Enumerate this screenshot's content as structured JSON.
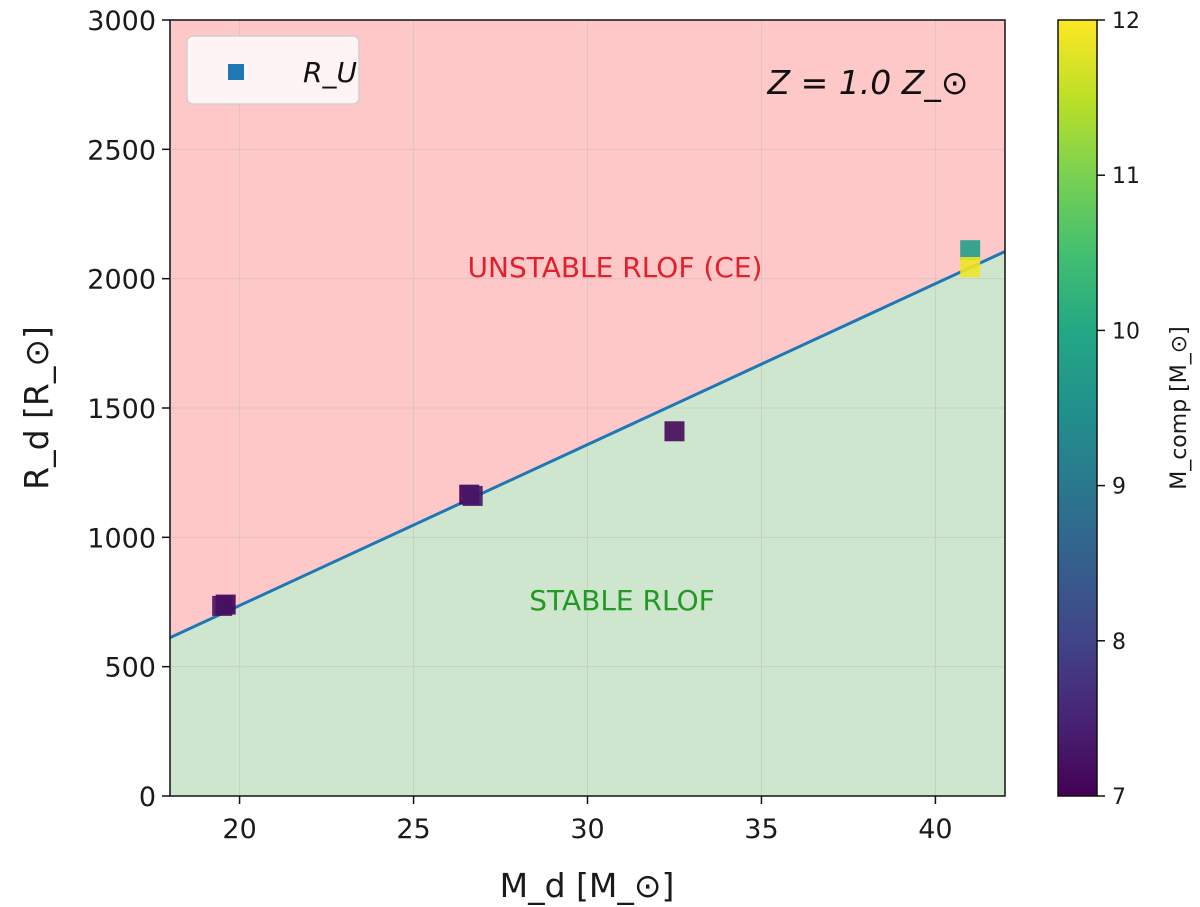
{
  "chart_data": {
    "type": "scatter",
    "xlabel": "M_d [M_⊙]",
    "ylabel": "R_d [R_⊙]",
    "xlim": [
      18,
      42
    ],
    "ylim": [
      0,
      3000
    ],
    "x_ticks": [
      20,
      25,
      30,
      35,
      40
    ],
    "y_ticks": [
      0,
      500,
      1000,
      1500,
      2000,
      2500,
      3000
    ],
    "grid": true,
    "legend": {
      "placement": "top-left",
      "entries": [
        {
          "label": "R_U",
          "marker": "square",
          "color": "#1f77b4"
        }
      ]
    },
    "annotation": "Z = 1.0 Z_⊙",
    "regions": [
      {
        "label": "UNSTABLE RLOF (CE)",
        "position": "above line",
        "color": "#ffc8c8",
        "text_color": "#e0202a"
      },
      {
        "label": "STABLE RLOF",
        "position": "below line",
        "color": "#cde6cd",
        "text_color": "#229922"
      }
    ],
    "series": [
      {
        "name": "R_U",
        "kind": "line",
        "color": "#1f77b4",
        "x": [
          18,
          42
        ],
        "y": [
          612,
          2105
        ]
      },
      {
        "kind": "scatter",
        "marker": "square",
        "color_by": "M_comp",
        "points": [
          {
            "x": 19.6,
            "y": 740,
            "c": 7.0
          },
          {
            "x": 19.5,
            "y": 735,
            "c": 7.2
          },
          {
            "x": 26.6,
            "y": 1165,
            "c": 7.0
          },
          {
            "x": 26.7,
            "y": 1160,
            "c": 7.3
          },
          {
            "x": 32.5,
            "y": 1410,
            "c": 7.1
          },
          {
            "x": 41.0,
            "y": 2110,
            "c": 9.8
          },
          {
            "x": 41.0,
            "y": 2045,
            "c": 11.9
          }
        ]
      }
    ],
    "colorbar": {
      "label": "M_comp [M_⊙]",
      "colormap": "viridis",
      "range": [
        7,
        12
      ],
      "ticks": [
        7,
        8,
        9,
        10,
        11,
        12
      ]
    }
  }
}
